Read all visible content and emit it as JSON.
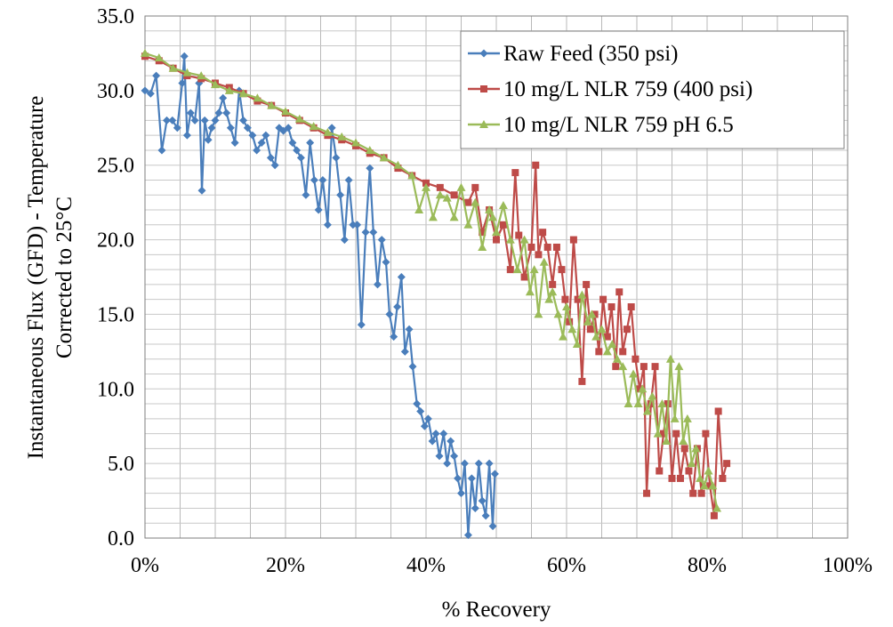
{
  "chart_data": {
    "type": "line",
    "title": "",
    "xlabel": "% Recovery",
    "ylabel_lines": [
      "Instantaneous Flux (GFD) - Temperature",
      "Corrected to 25°C"
    ],
    "xlim": [
      0,
      100
    ],
    "ylim": [
      0,
      35
    ],
    "x_ticks": [
      "0%",
      "20%",
      "40%",
      "60%",
      "80%",
      "100%"
    ],
    "y_ticks": [
      "0.0",
      "5.0",
      "10.0",
      "15.0",
      "20.0",
      "25.0",
      "30.0",
      "35.0"
    ],
    "grid": true,
    "legend_position": "top-right",
    "series": [
      {
        "name": "Raw Feed (350 psi)",
        "color": "#4a7ebb",
        "marker": "diamond",
        "points": [
          [
            0,
            30
          ],
          [
            0.8,
            29.8
          ],
          [
            1.6,
            31
          ],
          [
            2.4,
            26
          ],
          [
            3.1,
            28
          ],
          [
            3.9,
            28
          ],
          [
            4.6,
            27.5
          ],
          [
            5.3,
            30.5
          ],
          [
            5.6,
            32.3
          ],
          [
            6,
            27
          ],
          [
            6.5,
            28.5
          ],
          [
            7.1,
            28
          ],
          [
            7.7,
            30.5
          ],
          [
            8.1,
            23.3
          ],
          [
            8.5,
            28
          ],
          [
            9,
            26.7
          ],
          [
            9.5,
            27.5
          ],
          [
            10,
            28
          ],
          [
            10.5,
            28.5
          ],
          [
            11.1,
            29.5
          ],
          [
            11.6,
            28.5
          ],
          [
            12.2,
            27.5
          ],
          [
            12.8,
            26.5
          ],
          [
            13.4,
            30
          ],
          [
            14,
            28
          ],
          [
            14.6,
            27.5
          ],
          [
            15.3,
            27
          ],
          [
            15.9,
            26
          ],
          [
            16.6,
            26.5
          ],
          [
            17.2,
            27
          ],
          [
            17.9,
            25.5
          ],
          [
            18.5,
            25
          ],
          [
            19.1,
            27.5
          ],
          [
            19.7,
            27.3
          ],
          [
            20.4,
            27.5
          ],
          [
            21,
            26.5
          ],
          [
            21.6,
            26
          ],
          [
            22.2,
            25.5
          ],
          [
            22.9,
            23
          ],
          [
            23.5,
            26.5
          ],
          [
            24.1,
            24
          ],
          [
            24.7,
            22
          ],
          [
            25.3,
            24
          ],
          [
            26,
            21
          ],
          [
            26.6,
            27.5
          ],
          [
            27.2,
            25.5
          ],
          [
            27.8,
            23
          ],
          [
            28.4,
            20
          ],
          [
            29,
            24
          ],
          [
            29.6,
            21
          ],
          [
            30.2,
            21
          ],
          [
            30.8,
            14.3
          ],
          [
            31.4,
            20.5
          ],
          [
            32,
            24.8
          ],
          [
            32.5,
            20.5
          ],
          [
            33.1,
            17
          ],
          [
            33.7,
            20
          ],
          [
            34.3,
            18.5
          ],
          [
            34.8,
            15
          ],
          [
            35.4,
            13.5
          ],
          [
            35.9,
            15.5
          ],
          [
            36.5,
            17.5
          ],
          [
            37,
            12.5
          ],
          [
            37.6,
            14
          ],
          [
            38.1,
            11.5
          ],
          [
            38.7,
            9
          ],
          [
            39.2,
            8.5
          ],
          [
            39.8,
            7.5
          ],
          [
            40.3,
            8
          ],
          [
            40.9,
            6.5
          ],
          [
            41.4,
            7
          ],
          [
            41.9,
            5.5
          ],
          [
            42.5,
            7
          ],
          [
            43,
            5
          ],
          [
            43.5,
            6.5
          ],
          [
            44,
            5.5
          ],
          [
            44.5,
            4
          ],
          [
            45,
            3
          ],
          [
            45.5,
            5
          ],
          [
            46,
            0.2
          ],
          [
            46.5,
            4
          ],
          [
            47,
            2
          ],
          [
            47.5,
            5
          ],
          [
            48,
            2.5
          ],
          [
            48.5,
            1.5
          ],
          [
            49,
            5
          ],
          [
            49.5,
            0.8
          ],
          [
            49.8,
            4.3
          ]
        ]
      },
      {
        "name": "10 mg/L NLR 759 (400 psi)",
        "color": "#be4b48",
        "marker": "square",
        "points": [
          [
            0,
            32.3
          ],
          [
            2,
            32
          ],
          [
            4,
            31.5
          ],
          [
            6,
            31
          ],
          [
            8,
            30.8
          ],
          [
            10,
            30.5
          ],
          [
            12,
            30.2
          ],
          [
            14,
            29.8
          ],
          [
            16,
            29.3
          ],
          [
            18,
            29
          ],
          [
            20,
            28.5
          ],
          [
            22,
            28
          ],
          [
            24,
            27.5
          ],
          [
            26,
            27
          ],
          [
            28,
            26.7
          ],
          [
            30,
            26.3
          ],
          [
            32,
            25.8
          ],
          [
            34,
            25.5
          ],
          [
            36,
            24.8
          ],
          [
            38,
            24.3
          ],
          [
            40,
            23.8
          ],
          [
            42,
            23.5
          ],
          [
            44,
            23
          ],
          [
            46,
            22.5
          ],
          [
            47,
            23.5
          ],
          [
            48,
            20.5
          ],
          [
            49,
            22
          ],
          [
            50,
            20
          ],
          [
            51,
            21
          ],
          [
            52,
            18
          ],
          [
            52.7,
            24.5
          ],
          [
            53.2,
            20.3
          ],
          [
            54,
            17.5
          ],
          [
            55,
            19.5
          ],
          [
            55.6,
            25
          ],
          [
            56,
            19
          ],
          [
            56.6,
            20.5
          ],
          [
            57.3,
            19.5
          ],
          [
            58,
            17
          ],
          [
            58.6,
            19.5
          ],
          [
            59.3,
            18
          ],
          [
            59.8,
            16
          ],
          [
            60.4,
            14.5
          ],
          [
            61,
            20
          ],
          [
            61.6,
            16
          ],
          [
            62.2,
            10.5
          ],
          [
            62.8,
            17
          ],
          [
            63.4,
            14
          ],
          [
            64,
            15
          ],
          [
            64.6,
            12.5
          ],
          [
            65.2,
            16
          ],
          [
            65.8,
            13.5
          ],
          [
            66.4,
            15.5
          ],
          [
            67,
            11.5
          ],
          [
            67.5,
            16.5
          ],
          [
            68,
            12.5
          ],
          [
            68.6,
            14
          ],
          [
            69.2,
            15.5
          ],
          [
            69.8,
            12
          ],
          [
            70.4,
            10
          ],
          [
            71,
            11.5
          ],
          [
            71.4,
            3
          ],
          [
            72,
            9
          ],
          [
            72.6,
            11.5
          ],
          [
            73.2,
            4.5
          ],
          [
            73.8,
            7
          ],
          [
            74.4,
            9
          ],
          [
            75,
            4
          ],
          [
            75.6,
            7
          ],
          [
            76.2,
            4
          ],
          [
            76.8,
            6
          ],
          [
            77.4,
            4.5
          ],
          [
            78,
            3
          ],
          [
            78.6,
            6
          ],
          [
            79.2,
            3
          ],
          [
            79.8,
            7
          ],
          [
            80.4,
            3.5
          ],
          [
            81,
            1.5
          ],
          [
            81.6,
            8.5
          ],
          [
            82.2,
            4
          ],
          [
            82.8,
            5
          ]
        ]
      },
      {
        "name": "10 mg/L NLR 759 pH 6.5",
        "color": "#9bbb59",
        "marker": "triangle",
        "points": [
          [
            0,
            32.5
          ],
          [
            2,
            32.2
          ],
          [
            4,
            31.5
          ],
          [
            6,
            31.2
          ],
          [
            8,
            31
          ],
          [
            10,
            30.4
          ],
          [
            12,
            30
          ],
          [
            14,
            29.8
          ],
          [
            16,
            29.5
          ],
          [
            18,
            29
          ],
          [
            20,
            28.6
          ],
          [
            22,
            28.1
          ],
          [
            24,
            27.6
          ],
          [
            26,
            27.2
          ],
          [
            28,
            26.9
          ],
          [
            30,
            26.5
          ],
          [
            32,
            26
          ],
          [
            34,
            25.5
          ],
          [
            36,
            25
          ],
          [
            38,
            24.3
          ],
          [
            39,
            22
          ],
          [
            40,
            23.5
          ],
          [
            41,
            21.5
          ],
          [
            42,
            23
          ],
          [
            43,
            22.8
          ],
          [
            44,
            21.5
          ],
          [
            45,
            23.5
          ],
          [
            46,
            21
          ],
          [
            47,
            22.5
          ],
          [
            48,
            19.5
          ],
          [
            49,
            22
          ],
          [
            49.5,
            21.5
          ],
          [
            50,
            20.5
          ],
          [
            51,
            22.3
          ],
          [
            52,
            20
          ],
          [
            53,
            18
          ],
          [
            54,
            20
          ],
          [
            54.8,
            16.5
          ],
          [
            55.4,
            18
          ],
          [
            56,
            15
          ],
          [
            56.8,
            18.5
          ],
          [
            57.5,
            16
          ],
          [
            58,
            16.5
          ],
          [
            58.8,
            15
          ],
          [
            59.5,
            13.5
          ],
          [
            60,
            15.5
          ],
          [
            60.8,
            14
          ],
          [
            61.5,
            13
          ],
          [
            62.2,
            16.3
          ],
          [
            63,
            14.5
          ],
          [
            63.6,
            15
          ],
          [
            64.2,
            13.5
          ],
          [
            65,
            14
          ],
          [
            65.8,
            12.5
          ],
          [
            66.5,
            13
          ],
          [
            67.2,
            12
          ],
          [
            68,
            11.5
          ],
          [
            68.8,
            9
          ],
          [
            69.5,
            11
          ],
          [
            70.2,
            9
          ],
          [
            70.8,
            10
          ],
          [
            71.5,
            8.5
          ],
          [
            72.2,
            9.5
          ],
          [
            73,
            7
          ],
          [
            73.6,
            9
          ],
          [
            74.2,
            6.5
          ],
          [
            74.8,
            12
          ],
          [
            75.4,
            8
          ],
          [
            76,
            11.5
          ],
          [
            76.6,
            6.5
          ],
          [
            77.2,
            8
          ],
          [
            77.8,
            5
          ],
          [
            78.4,
            6
          ],
          [
            79,
            4
          ],
          [
            79.6,
            3.5
          ],
          [
            80.2,
            4.5
          ],
          [
            80.8,
            3.5
          ],
          [
            81.4,
            2
          ]
        ]
      }
    ]
  }
}
